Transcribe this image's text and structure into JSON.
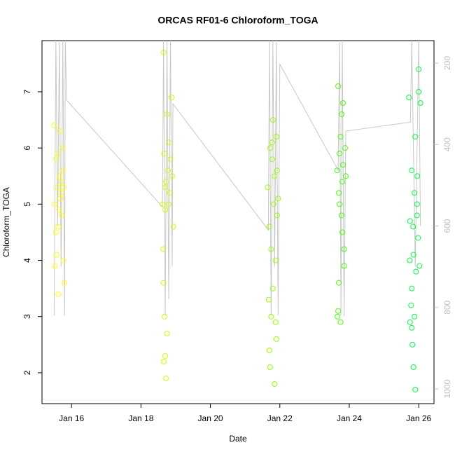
{
  "chart_data": {
    "type": "scatter",
    "title": "ORCAS RF01-6 Chloroform_TOGA",
    "xlabel": "Date",
    "ylabel": "Chloroform_TOGA",
    "xlim": [
      15.15,
      26.44
    ],
    "xticks": [
      {
        "value": 16,
        "label": "Jan 16"
      },
      {
        "value": 18,
        "label": "Jan 18"
      },
      {
        "value": 20,
        "label": "Jan 20"
      },
      {
        "value": 22,
        "label": "Jan 22"
      },
      {
        "value": 24,
        "label": "Jan 24"
      },
      {
        "value": 26,
        "label": "Jan 26"
      }
    ],
    "ylim": [
      1.45,
      7.91
    ],
    "yticks": [
      2,
      3,
      4,
      5,
      6,
      7
    ],
    "y2lim": [
      1036,
      145
    ],
    "y2ticks": [
      200,
      400,
      600,
      800,
      1000
    ],
    "y2color": "#c0c0c0",
    "series": [
      {
        "color": "#ffff00",
        "x": [
          15.5,
          15.52,
          15.55,
          15.57,
          15.6,
          15.62,
          15.65,
          15.67,
          15.7,
          15.72,
          15.75,
          15.77,
          15.8,
          15.55,
          15.6,
          15.65,
          15.7,
          15.75,
          15.52,
          15.62,
          15.68,
          15.78
        ],
        "values": [
          6.4,
          5.0,
          5.8,
          4.1,
          5.3,
          3.4,
          5.5,
          6.3,
          5.2,
          4.8,
          5.6,
          4.0,
          3.6,
          4.5,
          5.9,
          4.9,
          5.4,
          6.0,
          3.9,
          4.6,
          5.1,
          5.3
        ]
      },
      {
        "color": "#ccff00",
        "x": [
          18.62,
          18.65,
          18.67,
          18.7,
          18.72,
          18.75,
          18.78,
          18.8,
          18.82,
          18.85,
          18.88,
          18.9,
          18.93,
          18.65,
          18.7,
          18.75,
          18.8,
          18.68,
          18.72,
          18.64,
          18.66,
          18.7
        ],
        "values": [
          5.0,
          7.7,
          5.9,
          4.9,
          5.4,
          6.6,
          5.6,
          6.1,
          5.2,
          5.8,
          6.9,
          5.5,
          4.6,
          3.6,
          2.3,
          2.7,
          5.0,
          3.0,
          1.9,
          4.2,
          2.2,
          5.3
        ]
      },
      {
        "color": "#99ff00",
        "x": [
          21.65,
          21.7,
          21.72,
          21.75,
          21.78,
          21.8,
          21.82,
          21.85,
          21.88,
          21.9,
          21.92,
          21.95,
          21.7,
          21.75,
          21.8,
          21.85,
          21.9,
          21.72,
          21.78,
          21.88,
          21.68,
          21.92
        ],
        "values": [
          5.3,
          4.6,
          6.0,
          3.0,
          5.8,
          6.5,
          5.0,
          5.5,
          2.9,
          6.2,
          4.8,
          5.1,
          2.4,
          4.2,
          3.5,
          1.8,
          2.6,
          2.1,
          6.1,
          4.0,
          3.3,
          5.6
        ]
      },
      {
        "color": "#44ff00",
        "x": [
          23.65,
          23.68,
          23.7,
          23.72,
          23.75,
          23.78,
          23.8,
          23.82,
          23.85,
          23.88,
          23.7,
          23.75,
          23.8,
          23.85,
          23.68,
          23.72,
          23.78,
          23.9,
          23.66,
          23.82
        ],
        "values": [
          5.6,
          7.1,
          5.2,
          5.9,
          6.2,
          4.8,
          5.4,
          5.7,
          3.9,
          6.0,
          3.6,
          2.9,
          4.5,
          4.2,
          3.1,
          5.0,
          6.6,
          5.5,
          3.0,
          6.8
        ]
      },
      {
        "color": "#00ff44",
        "x": [
          25.72,
          25.75,
          25.78,
          25.8,
          25.82,
          25.85,
          25.88,
          25.9,
          25.92,
          25.95,
          25.98,
          26.0,
          26.02,
          26.05,
          25.75,
          25.8,
          25.85,
          25.9,
          25.95,
          25.8,
          25.88,
          25.96,
          25.74,
          26.0,
          25.84
        ],
        "values": [
          6.9,
          4.7,
          3.2,
          5.6,
          2.5,
          4.1,
          5.2,
          6.2,
          3.8,
          5.0,
          4.4,
          7.4,
          3.9,
          6.8,
          2.9,
          3.5,
          2.1,
          1.7,
          4.8,
          2.8,
          3.0,
          5.5,
          4.0,
          7.0,
          4.6
        ]
      },
      {
        "style": "line",
        "axis": "y2",
        "color": "#c8c8c8",
        "x": [
          15.5,
          15.55,
          15.6,
          15.65,
          15.7,
          15.75,
          15.8,
          15.82,
          15.86,
          18.62,
          18.65,
          18.7,
          18.75,
          18.8,
          18.85,
          18.9,
          18.92,
          21.67,
          21.7,
          21.75,
          21.8,
          21.85,
          21.9,
          21.95,
          22.0,
          23.68,
          23.72,
          23.76,
          23.8,
          23.85,
          23.9,
          25.76,
          25.8,
          25.9,
          26.0,
          26.05
        ],
        "values": [
          820,
          145,
          600,
          145,
          700,
          145,
          820,
          145,
          291,
          553,
          145,
          820,
          145,
          780,
          145,
          700,
          300,
          610,
          145,
          820,
          145,
          700,
          145,
          820,
          203,
          463,
          145,
          820,
          145,
          820,
          367,
          345,
          145,
          700,
          145,
          600
        ]
      }
    ]
  }
}
